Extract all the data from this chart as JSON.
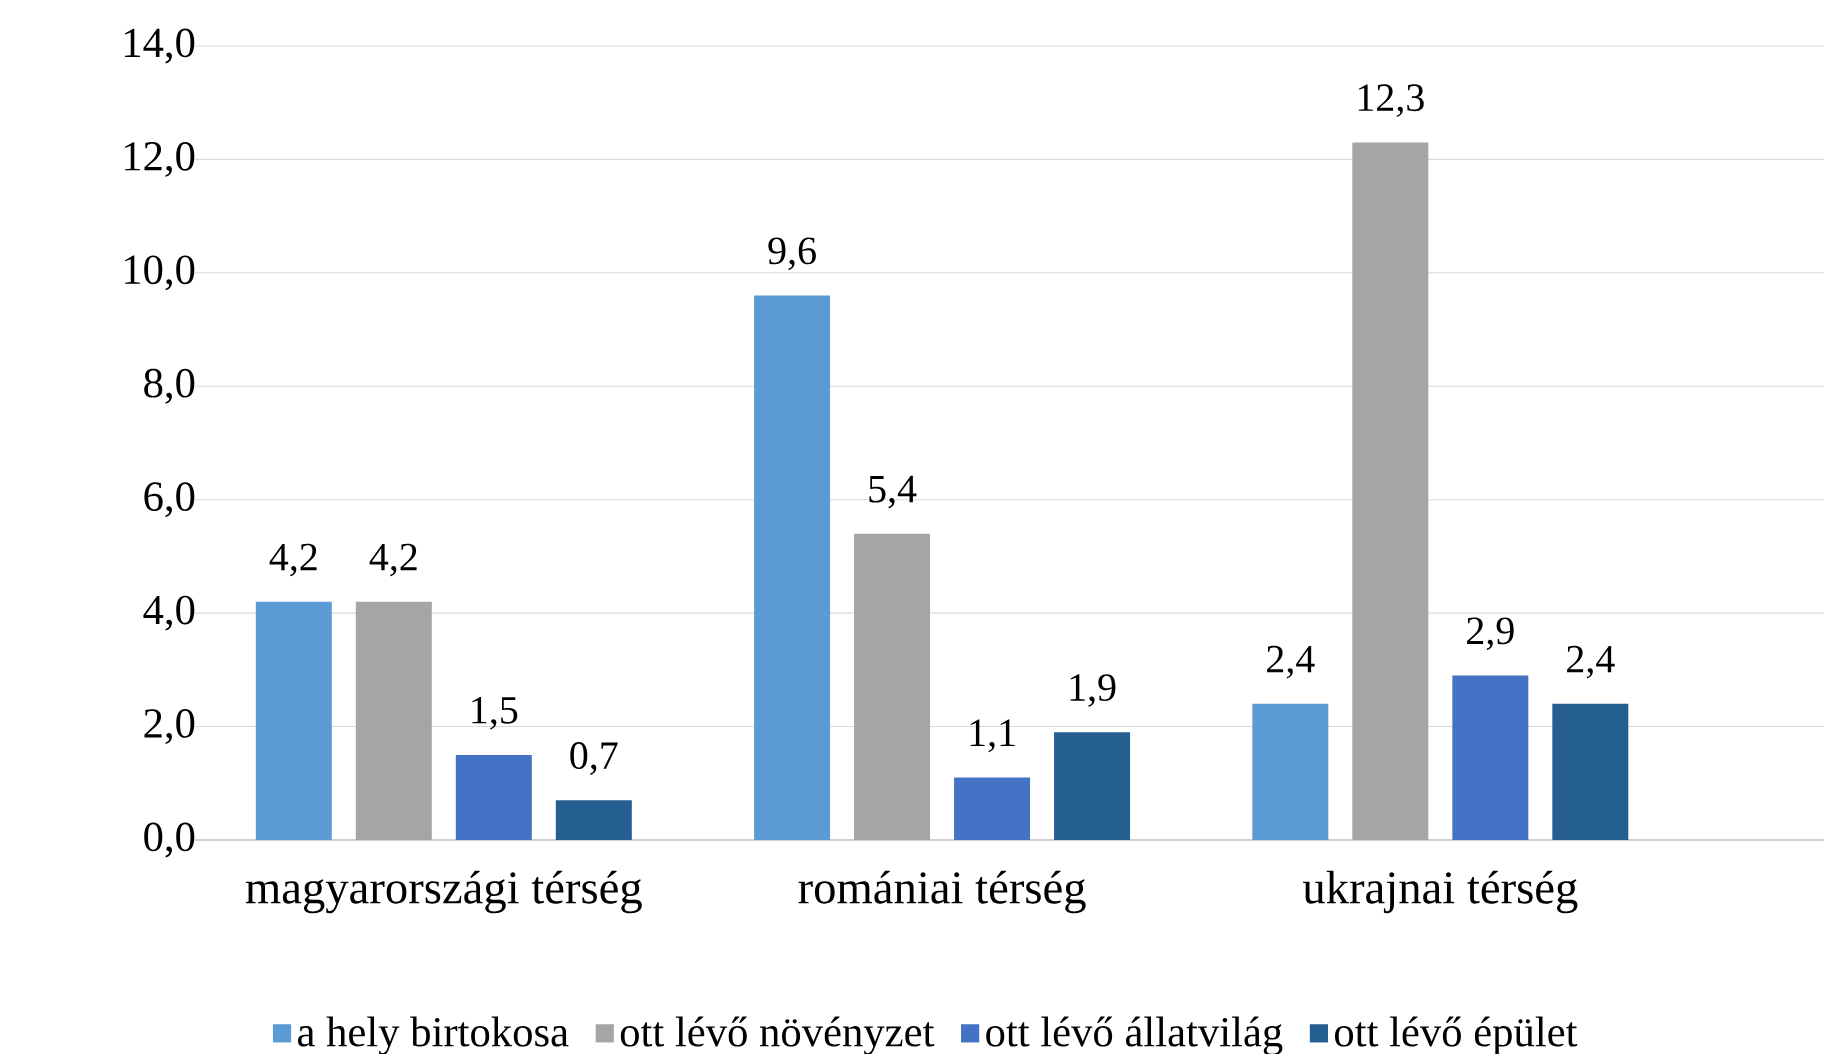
{
  "chart_data": {
    "type": "bar",
    "categories": [
      "magyarországi térség",
      "romániai térség",
      "ukrajnai térség"
    ],
    "series": [
      {
        "name": "a hely birtokosa",
        "color": "#5b9bd5",
        "values": [
          4.2,
          9.6,
          2.4
        ],
        "value_labels": [
          "4,2",
          "9,6",
          "2,4"
        ]
      },
      {
        "name": "ott lévő növényzet",
        "color": "#a5a5a5",
        "values": [
          4.2,
          5.4,
          12.3
        ],
        "value_labels": [
          "4,2",
          "5,4",
          "12,3"
        ]
      },
      {
        "name": "ott lévő állatvilág",
        "color": "#4472c4",
        "values": [
          1.5,
          1.1,
          2.9
        ],
        "value_labels": [
          "1,5",
          "1,1",
          "2,9"
        ]
      },
      {
        "name": "ott lévő épület",
        "color": "#255e91",
        "values": [
          0.7,
          1.9,
          2.4
        ],
        "value_labels": [
          "0,7",
          "1,9",
          "2,4"
        ]
      }
    ],
    "ylim": [
      0,
      14
    ],
    "yticks": [
      {
        "value": 0,
        "label": "0,0"
      },
      {
        "value": 2,
        "label": "2,0"
      },
      {
        "value": 4,
        "label": "4,0"
      },
      {
        "value": 6,
        "label": "6,0"
      },
      {
        "value": 8,
        "label": "8,0"
      },
      {
        "value": 10,
        "label": "10,0"
      },
      {
        "value": 12,
        "label": "12,0"
      },
      {
        "value": 14,
        "label": "14,0"
      }
    ],
    "grid": "y",
    "legend": "bottom"
  }
}
